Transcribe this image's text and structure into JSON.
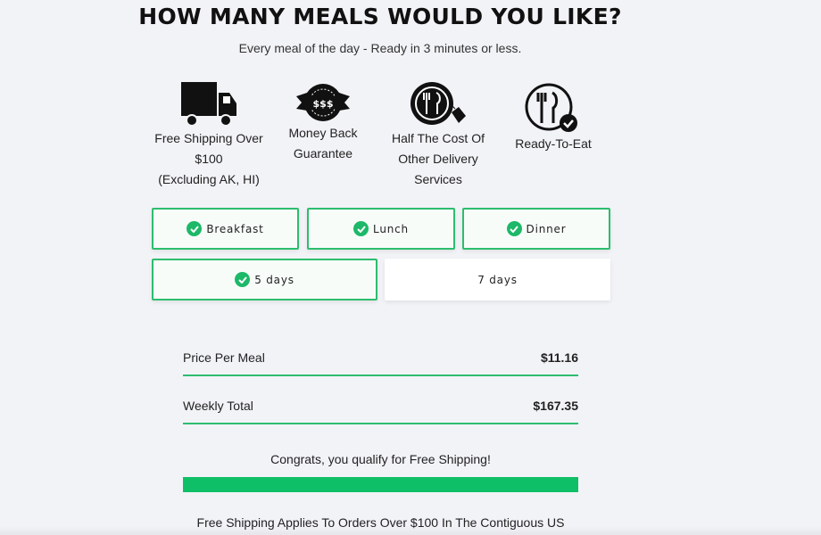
{
  "header": {
    "title": "HOW MANY MEALS WOULD YOU LIKE?",
    "subtitle": "Every meal of the day - Ready in 3 minutes or less."
  },
  "features": [
    {
      "icon": "truck-icon",
      "lines": [
        "Free Shipping Over",
        "$100",
        "(Excluding AK, HI)"
      ]
    },
    {
      "icon": "money-back-badge-icon",
      "lines": [
        "Money Back",
        "Guarantee"
      ]
    },
    {
      "icon": "plate-price-tag-icon",
      "lines": [
        "Half The Cost Of",
        "Other Delivery",
        "Services"
      ]
    },
    {
      "icon": "plate-check-icon",
      "lines": [
        "Ready-To-Eat"
      ]
    }
  ],
  "meals": [
    {
      "label": "Breakfast",
      "selected": true
    },
    {
      "label": "Lunch",
      "selected": true
    },
    {
      "label": "Dinner",
      "selected": true
    }
  ],
  "days": [
    {
      "label": "5 days",
      "selected": true
    },
    {
      "label": "7 days",
      "selected": false
    }
  ],
  "summary": {
    "price_label": "Price Per Meal",
    "price_value": "$11.16",
    "total_label": "Weekly Total",
    "total_value": "$167.35"
  },
  "shipping": {
    "message": "Congrats, you qualify for Free Shipping!",
    "progress_percent": 100,
    "note": "Free Shipping Applies To Orders Over $100 In The Contiguous US"
  },
  "colors": {
    "accent": "#1db868",
    "progress": "#0fbf67"
  }
}
